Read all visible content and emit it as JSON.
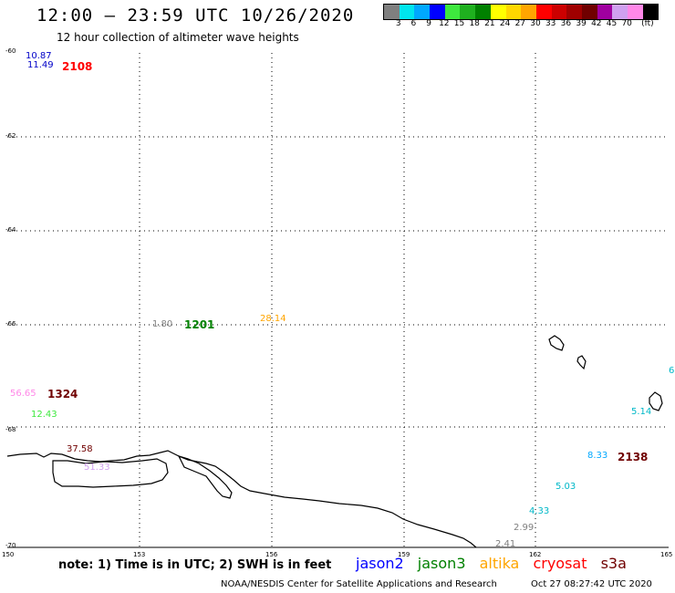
{
  "title": "12:00 – 23:59 UTC 10/26/2020",
  "subtitle": "12 hour collection of altimeter wave heights",
  "colorbar": {
    "colors": [
      "#7f7f7f",
      "#00e5ee",
      "#00a8ff",
      "#0000ff",
      "#3ee83e",
      "#1fb01f",
      "#008000",
      "#ffff00",
      "#ffd700",
      "#ffa500",
      "#ff0000",
      "#cc0000",
      "#a00000",
      "#700000",
      "#a000a0",
      "#d0a0f0",
      "#ff88e8",
      "#000000"
    ],
    "ticks": [
      "3",
      "6",
      "9",
      "12",
      "15",
      "18",
      "21",
      "24",
      "27",
      "30",
      "33",
      "36",
      "39",
      "42",
      "45",
      "70"
    ],
    "unit": "(ft)"
  },
  "axes": {
    "lat_labels": [
      "-60",
      "-62",
      "-64",
      "-66",
      "-68",
      "-70"
    ],
    "lon_labels": [
      "150",
      "153",
      "156",
      "159",
      "162",
      "165"
    ]
  },
  "readings": [
    {
      "text": "10.87",
      "color": "#0000c8"
    },
    {
      "text": "11.49",
      "color": "#0000c8"
    },
    {
      "text": "1.80",
      "color": "#7f7f7f"
    },
    {
      "text": "28.14",
      "color": "#ffa500"
    },
    {
      "text": "56.65",
      "color": "#ff88e8"
    },
    {
      "text": "12.43",
      "color": "#3ee83e"
    },
    {
      "text": "37.58",
      "color": "#700000"
    },
    {
      "text": "51.33",
      "color": "#d0a0f0"
    },
    {
      "text": "6",
      "color": "#00b8c8"
    },
    {
      "text": "5.14",
      "color": "#00b8c8"
    },
    {
      "text": "8.33",
      "color": "#00a8ff"
    },
    {
      "text": "5.03",
      "color": "#00b8c8"
    },
    {
      "text": "4.33",
      "color": "#00b8c8"
    },
    {
      "text": "2.99",
      "color": "#7f7f7f"
    },
    {
      "text": "2.41",
      "color": "#7f7f7f"
    }
  ],
  "pass_times": [
    {
      "text": "2108",
      "color": "#ff0000"
    },
    {
      "text": "1201",
      "color": "#008000"
    },
    {
      "text": "1324",
      "color": "#700000"
    },
    {
      "text": "2138",
      "color": "#700000"
    }
  ],
  "note": "note:  1) Time is in UTC;  2) SWH is in feet",
  "satellites": [
    {
      "name": "jason2",
      "color": "#0000ff"
    },
    {
      "name": "jason3",
      "color": "#008000"
    },
    {
      "name": "altika",
      "color": "#ffa500"
    },
    {
      "name": "cryosat",
      "color": "#ff0000"
    },
    {
      "name": "s3a",
      "color": "#700000"
    }
  ],
  "footer_center": "NOAA/NESDIS Center for Satellite Applications and Research",
  "footer_time": "Oct 27 08:27:42 UTC 2020"
}
